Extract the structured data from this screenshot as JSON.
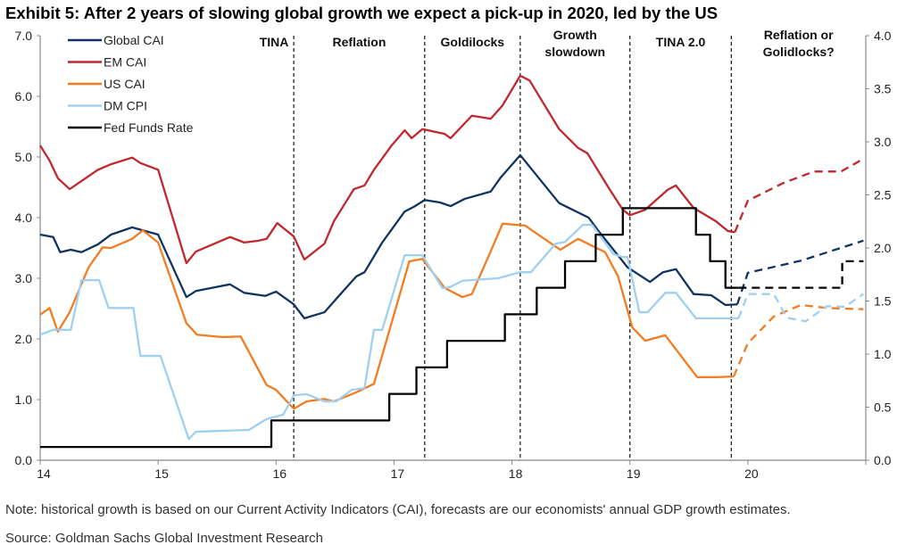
{
  "title": "Exhibit 5: After 2 years of slowing global growth we expect a pick-up in 2020, led by the US",
  "note": "Note: historical growth is based on our Current Activity Indicators (CAI), forecasts are our economists' annual GDP growth estimates.",
  "source": "Source: Goldman Sachs Global Investment Research",
  "chart_data": {
    "type": "line",
    "xlim": [
      14,
      21
    ],
    "x_ticks": [
      "14",
      "15",
      "16",
      "17",
      "18",
      "19",
      "20"
    ],
    "ylim_left": [
      0,
      7
    ],
    "y_ticks_left": [
      "0.0",
      "1.0",
      "2.0",
      "3.0",
      "4.0",
      "5.0",
      "6.0",
      "7.0"
    ],
    "ylim_right": [
      0,
      4
    ],
    "y_ticks_right": [
      "0.0",
      "0.5",
      "1.0",
      "1.5",
      "2.0",
      "2.5",
      "3.0",
      "3.5",
      "4.0"
    ],
    "grid": false,
    "legend_placement": "top-left",
    "regimes": [
      {
        "label": "TINA",
        "start": 14,
        "end": 16.15
      },
      {
        "label": "Reflation",
        "start": 16.15,
        "end": 17.26
      },
      {
        "label": "Goldilocks",
        "start": 17.26,
        "end": 18.07
      },
      {
        "label": "Growth slowdown",
        "start": 18.07,
        "end": 19.0
      },
      {
        "label": "TINA 2.0",
        "start": 19.0,
        "end": 19.86
      },
      {
        "label": "Reflation or Golidlocks?",
        "start": 19.86,
        "end": 21
      }
    ],
    "series": [
      {
        "name": "Global CAI",
        "color": "#0f3461",
        "axis": "left",
        "step": false,
        "values": [
          [
            14,
            3.72
          ],
          [
            14.11,
            3.68
          ],
          [
            14.17,
            3.43
          ],
          [
            14.26,
            3.47
          ],
          [
            14.35,
            3.43
          ],
          [
            14.49,
            3.56
          ],
          [
            14.6,
            3.72
          ],
          [
            14.78,
            3.84
          ],
          [
            14.87,
            3.79
          ],
          [
            15,
            3.72
          ],
          [
            15.24,
            2.69
          ],
          [
            15.32,
            2.79
          ],
          [
            15.61,
            2.9
          ],
          [
            15.73,
            2.76
          ],
          [
            15.91,
            2.71
          ],
          [
            16,
            2.78
          ],
          [
            16.15,
            2.57
          ],
          [
            16.24,
            2.34
          ],
          [
            16.41,
            2.44
          ],
          [
            16.51,
            2.66
          ],
          [
            16.68,
            3.03
          ],
          [
            16.75,
            3.1
          ],
          [
            16.9,
            3.59
          ],
          [
            17.09,
            4.1
          ],
          [
            17.17,
            4.18
          ],
          [
            17.26,
            4.29
          ],
          [
            17.39,
            4.25
          ],
          [
            17.48,
            4.19
          ],
          [
            17.6,
            4.31
          ],
          [
            17.82,
            4.43
          ],
          [
            17.9,
            4.65
          ],
          [
            18.07,
            5.03
          ],
          [
            18.4,
            4.24
          ],
          [
            18.65,
            4.0
          ],
          [
            18.73,
            3.79
          ],
          [
            18.98,
            3.18
          ],
          [
            19.17,
            2.94
          ],
          [
            19.28,
            3.1
          ],
          [
            19.39,
            3.15
          ],
          [
            19.54,
            2.74
          ],
          [
            19.69,
            2.72
          ],
          [
            19.81,
            2.56
          ],
          [
            19.91,
            2.57
          ]
        ],
        "forecast": [
          [
            19.91,
            2.57
          ],
          [
            20,
            3.09
          ],
          [
            20.45,
            3.29
          ],
          [
            20.9,
            3.57
          ],
          [
            20.98,
            3.62
          ]
        ]
      },
      {
        "name": "EM CAI",
        "color": "#c0282d",
        "axis": "left",
        "step": false,
        "values": [
          [
            14,
            5.19
          ],
          [
            14.08,
            4.94
          ],
          [
            14.15,
            4.65
          ],
          [
            14.25,
            4.47
          ],
          [
            14.49,
            4.79
          ],
          [
            14.6,
            4.88
          ],
          [
            14.78,
            4.99
          ],
          [
            14.85,
            4.9
          ],
          [
            15,
            4.79
          ],
          [
            15.24,
            3.25
          ],
          [
            15.32,
            3.44
          ],
          [
            15.61,
            3.68
          ],
          [
            15.73,
            3.59
          ],
          [
            15.85,
            3.62
          ],
          [
            15.92,
            3.65
          ],
          [
            16.01,
            3.91
          ],
          [
            16.15,
            3.69
          ],
          [
            16.24,
            3.31
          ],
          [
            16.41,
            3.57
          ],
          [
            16.49,
            3.94
          ],
          [
            16.66,
            4.47
          ],
          [
            16.75,
            4.53
          ],
          [
            16.83,
            4.79
          ],
          [
            16.98,
            5.19
          ],
          [
            17.09,
            5.44
          ],
          [
            17.15,
            5.31
          ],
          [
            17.24,
            5.46
          ],
          [
            17.43,
            5.38
          ],
          [
            17.48,
            5.31
          ],
          [
            17.66,
            5.68
          ],
          [
            17.82,
            5.63
          ],
          [
            17.92,
            5.85
          ],
          [
            18.07,
            6.34
          ],
          [
            18.15,
            6.26
          ],
          [
            18.4,
            5.46
          ],
          [
            18.56,
            5.15
          ],
          [
            18.64,
            5.06
          ],
          [
            18.83,
            4.46
          ],
          [
            18.94,
            4.13
          ],
          [
            19,
            4.04
          ],
          [
            19.13,
            4.13
          ],
          [
            19.32,
            4.46
          ],
          [
            19.39,
            4.53
          ],
          [
            19.54,
            4.16
          ],
          [
            19.73,
            3.94
          ],
          [
            19.83,
            3.78
          ],
          [
            19.89,
            3.76
          ]
        ],
        "forecast": [
          [
            19.89,
            3.76
          ],
          [
            20,
            4.28
          ],
          [
            20.3,
            4.57
          ],
          [
            20.56,
            4.76
          ],
          [
            20.79,
            4.76
          ],
          [
            20.98,
            4.97
          ]
        ]
      },
      {
        "name": "US CAI",
        "color": "#f47c20",
        "axis": "left",
        "step": false,
        "values": [
          [
            14,
            2.4
          ],
          [
            14.08,
            2.51
          ],
          [
            14.15,
            2.12
          ],
          [
            14.25,
            2.44
          ],
          [
            14.41,
            3.18
          ],
          [
            14.53,
            3.51
          ],
          [
            14.6,
            3.5
          ],
          [
            14.78,
            3.65
          ],
          [
            14.87,
            3.79
          ],
          [
            15,
            3.59
          ],
          [
            15.24,
            2.26
          ],
          [
            15.33,
            2.07
          ],
          [
            15.55,
            2.03
          ],
          [
            15.7,
            2.04
          ],
          [
            15.92,
            1.24
          ],
          [
            16,
            1.16
          ],
          [
            16.15,
            0.85
          ],
          [
            16.26,
            0.97
          ],
          [
            16.41,
            1.01
          ],
          [
            16.49,
            0.97
          ],
          [
            16.68,
            1.12
          ],
          [
            16.83,
            1.26
          ],
          [
            17.13,
            3.28
          ],
          [
            17.24,
            3.32
          ],
          [
            17.43,
            2.84
          ],
          [
            17.58,
            2.69
          ],
          [
            17.66,
            2.74
          ],
          [
            17.81,
            3.4
          ],
          [
            17.92,
            3.9
          ],
          [
            18.11,
            3.87
          ],
          [
            18.41,
            3.47
          ],
          [
            18.56,
            3.65
          ],
          [
            18.79,
            3.43
          ],
          [
            18.9,
            3.03
          ],
          [
            19.02,
            2.19
          ],
          [
            19.13,
            1.97
          ],
          [
            19.3,
            2.06
          ],
          [
            19.57,
            1.37
          ],
          [
            19.73,
            1.37
          ],
          [
            19.88,
            1.38
          ]
        ],
        "forecast": [
          [
            19.88,
            1.38
          ],
          [
            20,
            1.93
          ],
          [
            20.22,
            2.37
          ],
          [
            20.45,
            2.56
          ],
          [
            20.67,
            2.51
          ],
          [
            20.98,
            2.49
          ]
        ]
      },
      {
        "name": "DM CPI",
        "color": "#9fd0f0",
        "axis": "left",
        "step": false,
        "values": [
          [
            14,
            2.07
          ],
          [
            14.11,
            2.15
          ],
          [
            14.26,
            2.15
          ],
          [
            14.35,
            2.97
          ],
          [
            14.5,
            2.97
          ],
          [
            14.58,
            2.51
          ],
          [
            14.79,
            2.51
          ],
          [
            14.85,
            1.72
          ],
          [
            15.02,
            1.72
          ],
          [
            15.26,
            0.35
          ],
          [
            15.32,
            0.47
          ],
          [
            15.77,
            0.5
          ],
          [
            15.92,
            0.68
          ],
          [
            16.06,
            0.75
          ],
          [
            16.15,
            1.07
          ],
          [
            16.26,
            1.09
          ],
          [
            16.41,
            0.97
          ],
          [
            16.51,
            0.97
          ],
          [
            16.64,
            1.16
          ],
          [
            16.75,
            1.19
          ],
          [
            16.83,
            2.15
          ],
          [
            16.9,
            2.15
          ],
          [
            17.09,
            3.38
          ],
          [
            17.24,
            3.38
          ],
          [
            17.41,
            2.84
          ],
          [
            17.47,
            2.85
          ],
          [
            17.58,
            2.96
          ],
          [
            17.88,
            3.0
          ],
          [
            18.07,
            3.1
          ],
          [
            18.16,
            3.1
          ],
          [
            18.37,
            3.57
          ],
          [
            18.45,
            3.6
          ],
          [
            18.6,
            3.88
          ],
          [
            18.68,
            3.88
          ],
          [
            18.86,
            3.4
          ],
          [
            18.94,
            3.35
          ],
          [
            18.98,
            3.35
          ],
          [
            19.08,
            2.44
          ],
          [
            19.15,
            2.44
          ],
          [
            19.3,
            2.76
          ],
          [
            19.39,
            2.76
          ],
          [
            19.56,
            2.34
          ],
          [
            19.77,
            2.34
          ],
          [
            19.92,
            2.34
          ]
        ],
        "forecast": [
          [
            19.92,
            2.34
          ],
          [
            20,
            2.74
          ],
          [
            20.22,
            2.74
          ],
          [
            20.33,
            2.35
          ],
          [
            20.49,
            2.29
          ],
          [
            20.67,
            2.54
          ],
          [
            20.82,
            2.53
          ],
          [
            20.98,
            2.74
          ]
        ]
      },
      {
        "name": "Fed Funds Rate",
        "color": "#000000",
        "axis": "right",
        "step": true,
        "values": [
          [
            14,
            0.125
          ],
          [
            15.96,
            0.375
          ],
          [
            16.96,
            0.625
          ],
          [
            17.19,
            0.875
          ],
          [
            17.45,
            1.125
          ],
          [
            17.94,
            1.375
          ],
          [
            18.21,
            1.625
          ],
          [
            18.45,
            1.875
          ],
          [
            18.71,
            2.125
          ],
          [
            18.94,
            2.375
          ],
          [
            19.56,
            2.125
          ],
          [
            19.68,
            1.875
          ],
          [
            19.81,
            1.625
          ],
          [
            19.92,
            1.625
          ]
        ],
        "forecast": [
          [
            19.92,
            1.625
          ],
          [
            20.73,
            1.625
          ],
          [
            20.8,
            1.875
          ],
          [
            20.98,
            1.875
          ]
        ]
      }
    ]
  }
}
